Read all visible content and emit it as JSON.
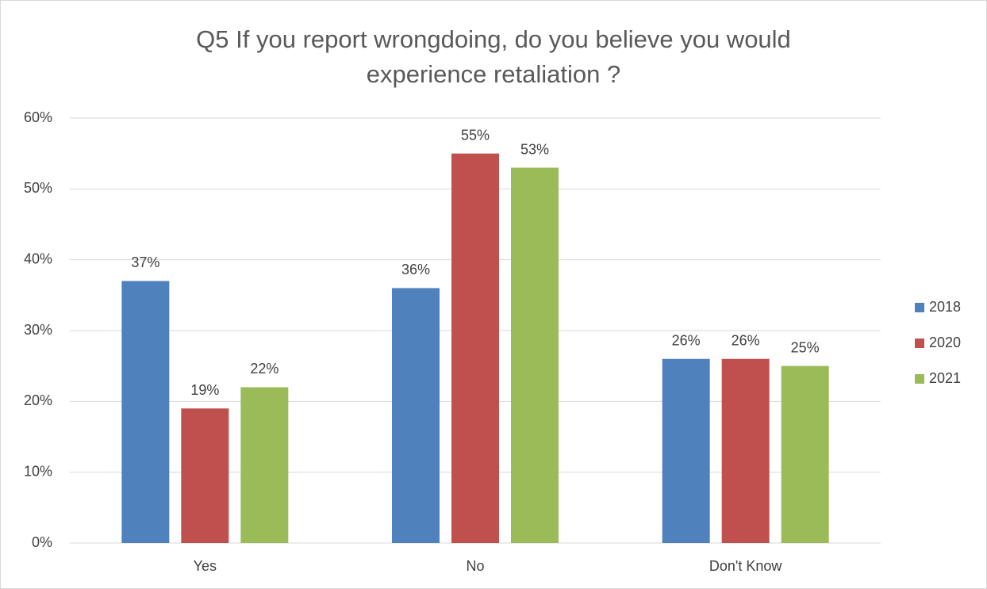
{
  "chart_data": {
    "type": "bar",
    "title": "Q5 If you report wrongdoing, do you believe you would experience retaliation ?",
    "categories": [
      "Yes",
      "No",
      "Don't Know"
    ],
    "series": [
      {
        "name": "2018",
        "color": "#4f81bd",
        "values": [
          37,
          36,
          26
        ],
        "value_labels": [
          "37%",
          "36%",
          "26%"
        ]
      },
      {
        "name": "2020",
        "color": "#c0504d",
        "values": [
          19,
          55,
          26
        ],
        "value_labels": [
          "19%",
          "55%",
          "26%"
        ]
      },
      {
        "name": "2021",
        "color": "#9bbb59",
        "values": [
          22,
          53,
          25
        ],
        "value_labels": [
          "22%",
          "53%",
          "25%"
        ]
      }
    ],
    "ylim": [
      0,
      60
    ],
    "yticks": [
      {
        "value": 0,
        "label": "0%"
      },
      {
        "value": 10,
        "label": "10%"
      },
      {
        "value": 20,
        "label": "20%"
      },
      {
        "value": 30,
        "label": "30%"
      },
      {
        "value": 40,
        "label": "40%"
      },
      {
        "value": 50,
        "label": "50%"
      },
      {
        "value": 60,
        "label": "60%"
      }
    ],
    "grid": true,
    "legend": "right"
  }
}
